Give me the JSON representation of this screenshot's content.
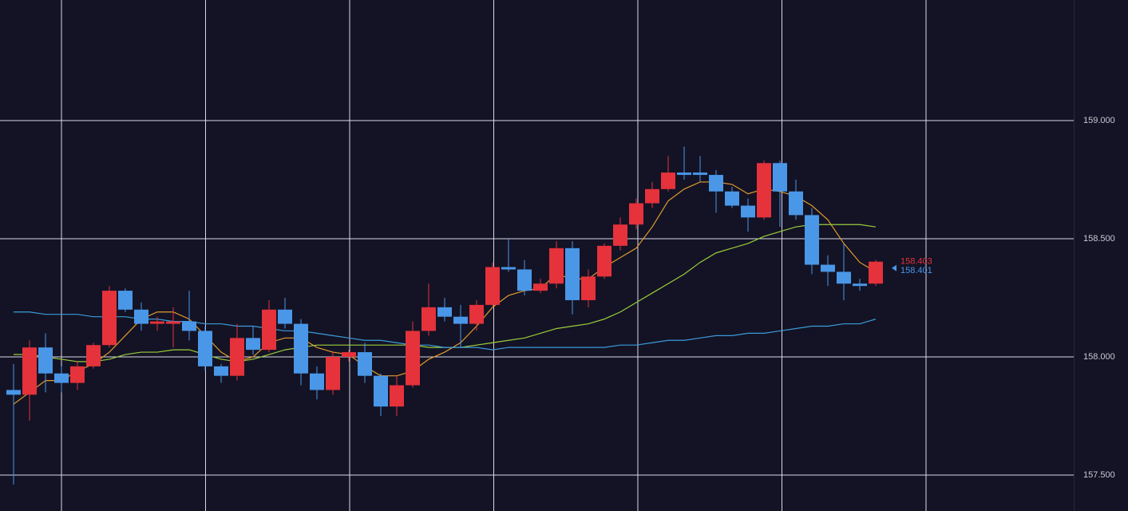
{
  "chart_data": {
    "type": "candlestick",
    "ylim": [
      157.348,
      159.51
    ],
    "yticks": [
      {
        "value": 157.5,
        "label": "157.500"
      },
      {
        "value": 158,
        "label": "158.000"
      },
      {
        "value": 158.5,
        "label": "158.500"
      },
      {
        "value": 159,
        "label": "159.000"
      }
    ],
    "grid": true,
    "up_color": "#e5323b",
    "down_color": "#4a97e8",
    "open": [
      157.86,
      157.84,
      158.04,
      157.93,
      157.89,
      157.96,
      158.05,
      158.28,
      158.2,
      158.14,
      158.14,
      158.15,
      158.11,
      157.96,
      157.92,
      158.08,
      158.03,
      158.2,
      158.14,
      157.93,
      157.86,
      158.0,
      158.02,
      157.92,
      157.79,
      157.88,
      158.11,
      158.21,
      158.17,
      158.14,
      158.22,
      158.38,
      158.37,
      158.28,
      158.31,
      158.46,
      158.24,
      158.34,
      158.47,
      158.56,
      158.65,
      158.71,
      158.78,
      158.78,
      158.77,
      158.7,
      158.64,
      158.59,
      158.82,
      158.7,
      158.6,
      158.39,
      158.36,
      158.31,
      158.31
    ],
    "high": [
      157.97,
      158.07,
      158.1,
      157.96,
      157.98,
      158.06,
      158.3,
      158.29,
      158.23,
      158.17,
      158.21,
      158.28,
      158.13,
      157.97,
      158.14,
      158.13,
      158.24,
      158.25,
      158.16,
      157.96,
      158.02,
      158.03,
      158.06,
      157.93,
      157.92,
      158.15,
      158.31,
      158.25,
      158.22,
      158.24,
      158.4,
      158.5,
      158.41,
      158.33,
      158.49,
      158.49,
      158.37,
      158.48,
      158.59,
      158.67,
      158.74,
      158.85,
      158.89,
      158.85,
      158.79,
      158.72,
      158.67,
      158.83,
      158.83,
      158.75,
      158.63,
      158.43,
      158.48,
      158.33,
      158.41
    ],
    "low": [
      157.46,
      157.73,
      157.85,
      157.85,
      157.86,
      157.95,
      158.04,
      158.19,
      158.11,
      158.11,
      158.04,
      158.07,
      157.94,
      157.89,
      157.9,
      158.01,
      158.02,
      158.12,
      157.88,
      157.82,
      157.84,
      157.98,
      157.89,
      157.75,
      157.75,
      157.87,
      158.09,
      158.15,
      158.04,
      158.11,
      158.21,
      158.36,
      158.26,
      158.27,
      158.29,
      158.18,
      158.21,
      158.33,
      158.45,
      158.54,
      158.63,
      158.7,
      158.75,
      158.74,
      158.61,
      158.63,
      158.53,
      158.58,
      158.55,
      158.58,
      158.35,
      158.3,
      158.24,
      158.28,
      158.3
    ],
    "close": [
      157.84,
      158.04,
      157.93,
      157.89,
      157.96,
      158.05,
      158.28,
      158.2,
      158.14,
      158.15,
      158.15,
      158.11,
      157.96,
      157.92,
      158.08,
      158.03,
      158.2,
      158.14,
      157.93,
      157.86,
      158.0,
      158.02,
      157.92,
      157.79,
      157.88,
      158.11,
      158.21,
      158.17,
      158.14,
      158.22,
      158.38,
      158.37,
      158.28,
      158.31,
      158.46,
      158.24,
      158.34,
      158.47,
      158.56,
      158.65,
      158.71,
      158.78,
      158.77,
      158.77,
      158.7,
      158.64,
      158.59,
      158.82,
      158.7,
      158.6,
      158.39,
      158.36,
      158.31,
      158.3,
      158.403
    ],
    "lines": [
      {
        "color": "#e39a2d",
        "values": [
          157.8,
          157.85,
          157.9,
          157.9,
          157.94,
          157.97,
          158.02,
          158.09,
          158.16,
          158.19,
          158.19,
          158.16,
          158.09,
          158.02,
          157.98,
          158.0,
          158.06,
          158.08,
          158.08,
          158.04,
          158.02,
          158.01,
          157.96,
          157.92,
          157.92,
          157.94,
          157.99,
          158.02,
          158.06,
          158.13,
          158.21,
          158.26,
          158.28,
          158.29,
          158.35,
          158.33,
          158.33,
          158.38,
          158.42,
          158.46,
          158.55,
          158.66,
          158.71,
          158.74,
          158.74,
          158.73,
          158.69,
          158.71,
          158.7,
          158.68,
          158.64,
          158.58,
          158.48,
          158.4,
          158.36
        ]
      },
      {
        "color": "#9ccc3a",
        "values": [
          158.01,
          158.01,
          158.0,
          157.99,
          157.98,
          157.98,
          157.99,
          158.01,
          158.02,
          158.02,
          158.03,
          158.03,
          158.01,
          157.99,
          157.98,
          157.99,
          158.01,
          158.03,
          158.04,
          158.05,
          158.05,
          158.05,
          158.05,
          158.05,
          158.05,
          158.05,
          158.04,
          158.04,
          158.04,
          158.05,
          158.06,
          158.07,
          158.08,
          158.1,
          158.12,
          158.13,
          158.14,
          158.16,
          158.19,
          158.23,
          158.27,
          158.31,
          158.35,
          158.4,
          158.44,
          158.46,
          158.48,
          158.51,
          158.53,
          158.55,
          158.56,
          158.56,
          158.56,
          158.56,
          158.55
        ]
      },
      {
        "color": "#3b9ad8",
        "values": [
          158.19,
          158.19,
          158.18,
          158.18,
          158.18,
          158.17,
          158.17,
          158.17,
          158.16,
          158.16,
          158.15,
          158.15,
          158.14,
          158.14,
          158.13,
          158.13,
          158.12,
          158.11,
          158.11,
          158.1,
          158.09,
          158.08,
          158.07,
          158.07,
          158.06,
          158.05,
          158.05,
          158.04,
          158.04,
          158.04,
          158.03,
          158.04,
          158.04,
          158.04,
          158.04,
          158.04,
          158.04,
          158.04,
          158.05,
          158.05,
          158.06,
          158.07,
          158.07,
          158.08,
          158.09,
          158.09,
          158.1,
          158.1,
          158.11,
          158.12,
          158.13,
          158.13,
          158.14,
          158.14,
          158.16
        ]
      }
    ],
    "price_labels": [
      {
        "value": 158.403,
        "label": "158.403",
        "color": "#e5323b"
      },
      {
        "value": 158.401,
        "label": "158.401",
        "color": "#4a97e8"
      }
    ]
  }
}
